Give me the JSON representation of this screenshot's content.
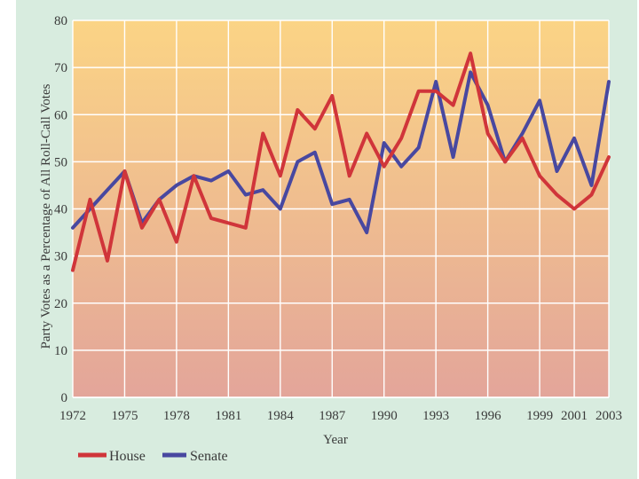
{
  "chart_data": {
    "type": "line",
    "title": "",
    "xlabel": "Year",
    "ylabel": "Party Votes as a Percentage of All Roll-Call Votes",
    "xlim": [
      1972,
      2003
    ],
    "ylim": [
      0,
      80
    ],
    "yticks": [
      0,
      10,
      20,
      30,
      40,
      50,
      60,
      70,
      80
    ],
    "xticks": [
      "1972",
      "1975",
      "1978",
      "1981",
      "1984",
      "1987",
      "1990",
      "1993",
      "1996",
      "1999",
      "2001",
      "2003"
    ],
    "grid": true,
    "legend_position": "bottom-left",
    "x": [
      1972,
      1973,
      1974,
      1975,
      1976,
      1977,
      1978,
      1979,
      1980,
      1981,
      1982,
      1983,
      1984,
      1985,
      1986,
      1987,
      1988,
      1989,
      1990,
      1991,
      1992,
      1993,
      1994,
      1995,
      1996,
      1997,
      1998,
      1999,
      2000,
      2001,
      2002,
      2003
    ],
    "series": [
      {
        "name": "House",
        "color": "#d0353a",
        "values": [
          27,
          42,
          29,
          48,
          36,
          42,
          33,
          47,
          38,
          37,
          36,
          56,
          47,
          61,
          57,
          64,
          47,
          56,
          49,
          55,
          65,
          65,
          62,
          73,
          56,
          50,
          55,
          47,
          43,
          40,
          43,
          51
        ]
      },
      {
        "name": "Senate",
        "color": "#4848a0",
        "values": [
          36,
          40,
          44,
          48,
          37,
          42,
          45,
          47,
          46,
          48,
          43,
          44,
          40,
          50,
          52,
          41,
          42,
          35,
          54,
          49,
          53,
          67,
          51,
          69,
          62,
          50,
          56,
          63,
          48,
          55,
          45,
          67
        ]
      }
    ]
  }
}
